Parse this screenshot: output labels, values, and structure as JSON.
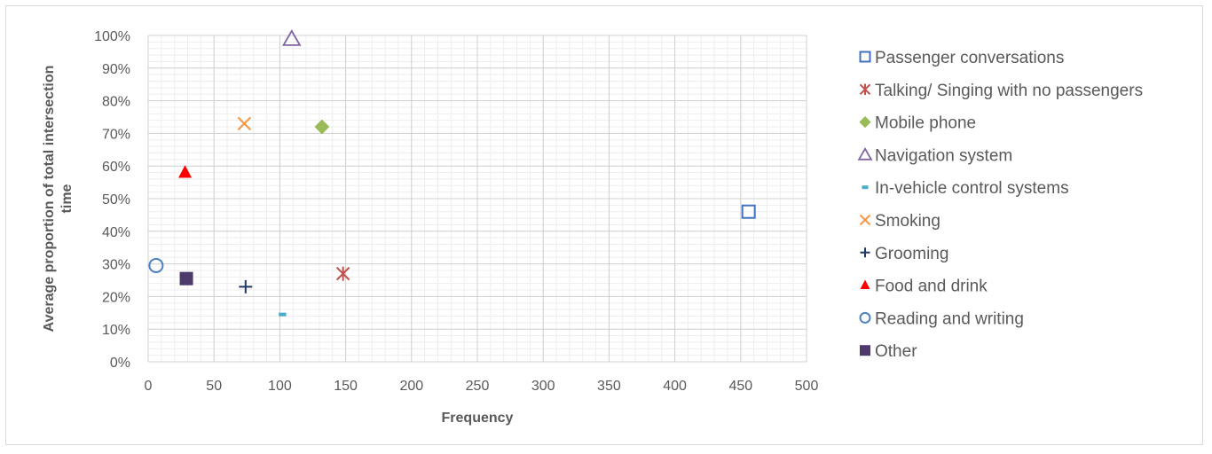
{
  "chart_data": {
    "type": "scatter",
    "title": "",
    "xlabel": "Frequency",
    "ylabel_lines": [
      "Average proportion of total intersection",
      "time"
    ],
    "xlim": [
      0,
      500
    ],
    "ylim": [
      0,
      1
    ],
    "x_major_ticks": [
      0,
      50,
      100,
      150,
      200,
      250,
      300,
      350,
      400,
      450,
      500
    ],
    "x_tick_labels": [
      "0",
      "50",
      "100",
      "150",
      "200",
      "250",
      "300",
      "350",
      "400",
      "450",
      "500"
    ],
    "y_major_ticks": [
      0,
      0.1,
      0.2,
      0.3,
      0.4,
      0.5,
      0.6,
      0.7,
      0.8,
      0.9,
      1.0
    ],
    "y_tick_labels": [
      "0%",
      "10%",
      "20%",
      "30%",
      "40%",
      "50%",
      "60%",
      "70%",
      "80%",
      "90%",
      "100%"
    ],
    "grid": "major and minor",
    "legend_position": "right",
    "series": [
      {
        "name": "Passenger conversations",
        "marker": "square-open",
        "color": "#4472c4",
        "x": 456,
        "y": 0.46
      },
      {
        "name": "Talking/ Singing with no passengers",
        "marker": "asterisk",
        "color": "#c0504d",
        "x": 148,
        "y": 0.27
      },
      {
        "name": "Mobile phone",
        "marker": "diamond",
        "color": "#9bbb59",
        "x": 132,
        "y": 0.72
      },
      {
        "name": "Navigation system",
        "marker": "triangle-open",
        "color": "#8064a2",
        "x": 109,
        "y": 0.99
      },
      {
        "name": "In-vehicle control systems",
        "marker": "dash",
        "color": "#4bacc6",
        "x": 102,
        "y": 0.145
      },
      {
        "name": "Smoking",
        "marker": "x",
        "color": "#f79646",
        "x": 73,
        "y": 0.73
      },
      {
        "name": "Grooming",
        "marker": "plus",
        "color": "#1f3864",
        "x": 74,
        "y": 0.23
      },
      {
        "name": "Food and drink",
        "marker": "triangle",
        "color": "#ff0000",
        "x": 28,
        "y": 0.58
      },
      {
        "name": "Reading and writing",
        "marker": "circle-open",
        "color": "#4f81bd",
        "x": 6,
        "y": 0.295
      },
      {
        "name": "Other",
        "marker": "square",
        "color": "#4b3a6b",
        "x": 29,
        "y": 0.255
      }
    ]
  }
}
